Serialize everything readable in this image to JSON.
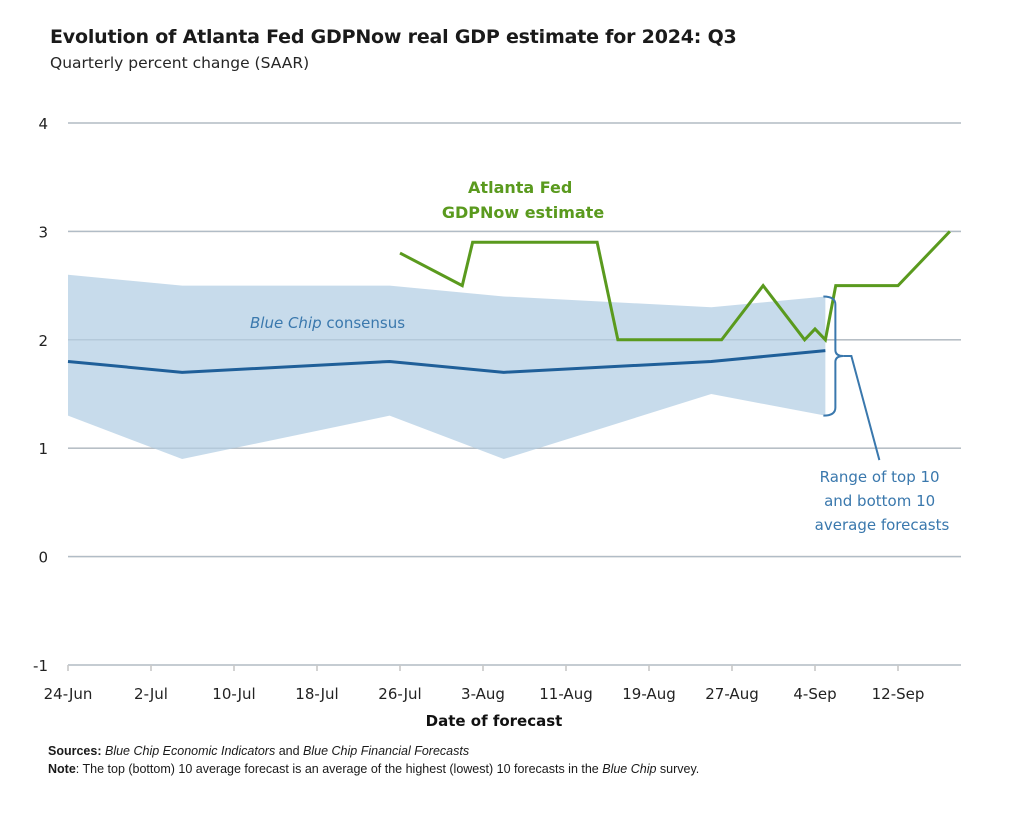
{
  "header": {
    "title": "Evolution of Atlanta Fed GDPNow real GDP estimate for 2024: Q3",
    "subtitle": "Quarterly percent change (SAAR)"
  },
  "footer": {
    "sources_label": "Sources:",
    "sources_italic_1": "Blue Chip Economic Indicators",
    "sources_and": " and ",
    "sources_italic_2": "Blue Chip Financial Forecasts",
    "note_label": "Note",
    "note_text_1": ": The top (bottom) 10 average forecast is an average of the highest (lowest) 10 forecasts in the ",
    "note_italic": "Blue Chip",
    "note_text_2": " survey."
  },
  "colors": {
    "gdpnow": "#5a9a1e",
    "consensus": "#1f5f99",
    "band": "#c4d9ea",
    "annotation_blue": "#3a78ad",
    "grid": "#c8c8c8"
  },
  "chart_data": {
    "type": "line",
    "title": "Evolution of Atlanta Fed GDPNow real GDP estimate for 2024: Q3",
    "subtitle": "Quarterly percent change (SAAR)",
    "xlabel": "Date of forecast",
    "ylabel": "",
    "ylim": [
      -1,
      4
    ],
    "yticks": [
      -1,
      0,
      1,
      2,
      3,
      4
    ],
    "x_start": "2024-06-24",
    "x_end": "2024-09-18",
    "xticks": [
      {
        "date": "2024-06-24",
        "label": "24-Jun"
      },
      {
        "date": "2024-07-02",
        "label": "2-Jul"
      },
      {
        "date": "2024-07-10",
        "label": "10-Jul"
      },
      {
        "date": "2024-07-18",
        "label": "18-Jul"
      },
      {
        "date": "2024-07-26",
        "label": "26-Jul"
      },
      {
        "date": "2024-08-03",
        "label": "3-Aug"
      },
      {
        "date": "2024-08-11",
        "label": "11-Aug"
      },
      {
        "date": "2024-08-19",
        "label": "19-Aug"
      },
      {
        "date": "2024-08-27",
        "label": "27-Aug"
      },
      {
        "date": "2024-09-04",
        "label": "4-Sep"
      },
      {
        "date": "2024-09-12",
        "label": "12-Sep"
      }
    ],
    "grid": true,
    "series": [
      {
        "name": "Atlanta Fed GDPNow estimate",
        "kind": "line",
        "points": [
          {
            "date": "2024-07-26",
            "value": 2.8
          },
          {
            "date": "2024-08-01",
            "value": 2.5
          },
          {
            "date": "2024-08-02",
            "value": 2.9
          },
          {
            "date": "2024-08-14",
            "value": 2.9
          },
          {
            "date": "2024-08-16",
            "value": 2.0
          },
          {
            "date": "2024-08-26",
            "value": 2.0
          },
          {
            "date": "2024-08-30",
            "value": 2.5
          },
          {
            "date": "2024-09-03",
            "value": 2.0
          },
          {
            "date": "2024-09-04",
            "value": 2.1
          },
          {
            "date": "2024-09-05",
            "value": 2.0
          },
          {
            "date": "2024-09-06",
            "value": 2.5
          },
          {
            "date": "2024-09-12",
            "value": 2.5
          },
          {
            "date": "2024-09-17",
            "value": 3.0
          }
        ]
      },
      {
        "name": "Blue Chip consensus",
        "kind": "line",
        "points": [
          {
            "date": "2024-06-24",
            "value": 1.8
          },
          {
            "date": "2024-07-05",
            "value": 1.7
          },
          {
            "date": "2024-07-25",
            "value": 1.8
          },
          {
            "date": "2024-08-05",
            "value": 1.7
          },
          {
            "date": "2024-08-25",
            "value": 1.8
          },
          {
            "date": "2024-09-05",
            "value": 1.9
          }
        ]
      },
      {
        "name": "Range of top 10 and bottom 10 average forecasts",
        "kind": "band",
        "points": [
          {
            "date": "2024-06-24",
            "high": 2.6,
            "low": 1.3
          },
          {
            "date": "2024-07-05",
            "high": 2.5,
            "low": 0.9
          },
          {
            "date": "2024-07-25",
            "high": 2.5,
            "low": 1.3
          },
          {
            "date": "2024-08-05",
            "high": 2.4,
            "low": 0.9
          },
          {
            "date": "2024-08-25",
            "high": 2.3,
            "low": 1.5
          },
          {
            "date": "2024-09-05",
            "high": 2.4,
            "low": 1.3
          }
        ]
      }
    ],
    "annotations": {
      "gdpnow_line1": "Atlanta Fed",
      "gdpnow_line2": "GDPNow estimate",
      "consensus_italic": "Blue Chip",
      "consensus_rest": " consensus",
      "range_line1": "Range of top 10",
      "range_line2": "and bottom 10",
      "range_line3": "average forecasts"
    }
  }
}
